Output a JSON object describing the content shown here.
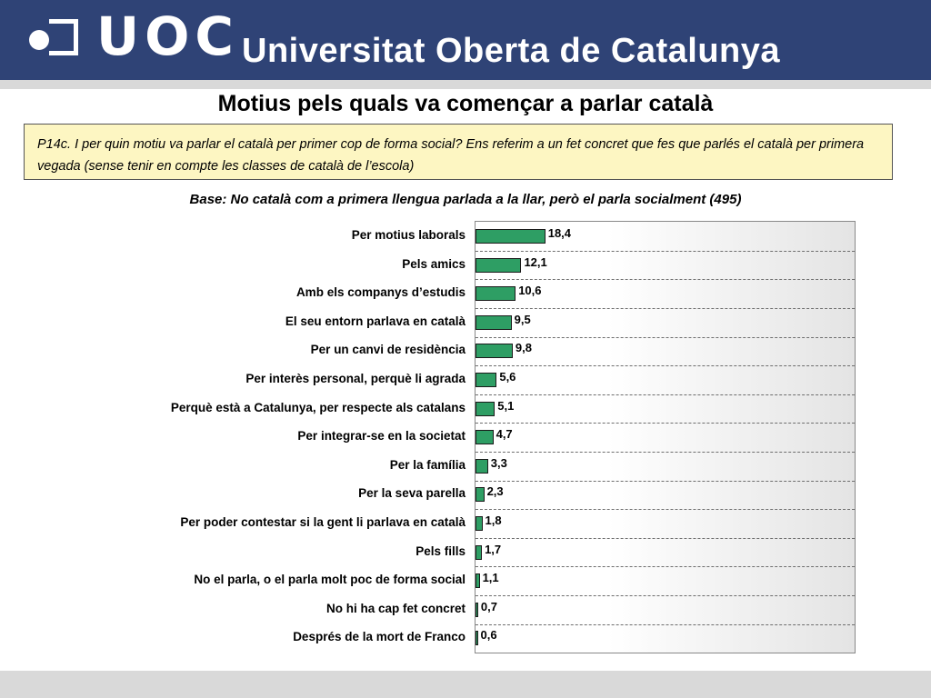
{
  "header": {
    "logo_text": "UOC",
    "university_name": "Universitat Oberta de Catalunya",
    "banner_color": "#2f4376"
  },
  "title": "Motius pels quals va començar  a parlar català",
  "question": "P14c. I per quin motiu va parlar el català per primer cop de forma social? Ens referim a un fet concret que fes que parlés el català per primera vegada (sense tenir en compte les classes de català de l’escola)",
  "base": "Base: No català com a primera llengua parlada a la llar, però el parla socialment (495)",
  "chart_data": {
    "type": "bar",
    "orientation": "horizontal",
    "categories": [
      "Per motius laborals",
      "Pels amics",
      "Amb els companys d’estudis",
      "El seu entorn parlava en català",
      "Per un canvi de residència",
      "Per interès personal, perquè li agrada",
      "Perquè està a Catalunya, per respecte als catalans",
      "Per integrar-se en la societat",
      "Per la família",
      "Per la seva parella",
      "Per poder contestar si la gent li parlava en català",
      "Pels fills",
      "No el parla, o el parla molt poc de forma social",
      "No hi ha cap fet concret",
      "Després de la mort de Franco"
    ],
    "values": [
      18.4,
      12.1,
      10.6,
      9.5,
      9.8,
      5.6,
      5.1,
      4.7,
      3.3,
      2.3,
      1.8,
      1.7,
      1.1,
      0.7,
      0.6
    ],
    "value_labels": [
      "18,4",
      "12,1",
      "10,6",
      "9,5",
      "9,8",
      "5,6",
      "5,1",
      "4,7",
      "3,3",
      "2,3",
      "1,8",
      "1,7",
      "1,1",
      "0,7",
      "0,6"
    ],
    "xlim": [
      0,
      100
    ],
    "bar_color": "#2e9e64",
    "grid": true,
    "grid_style": "dashed horizontal"
  }
}
